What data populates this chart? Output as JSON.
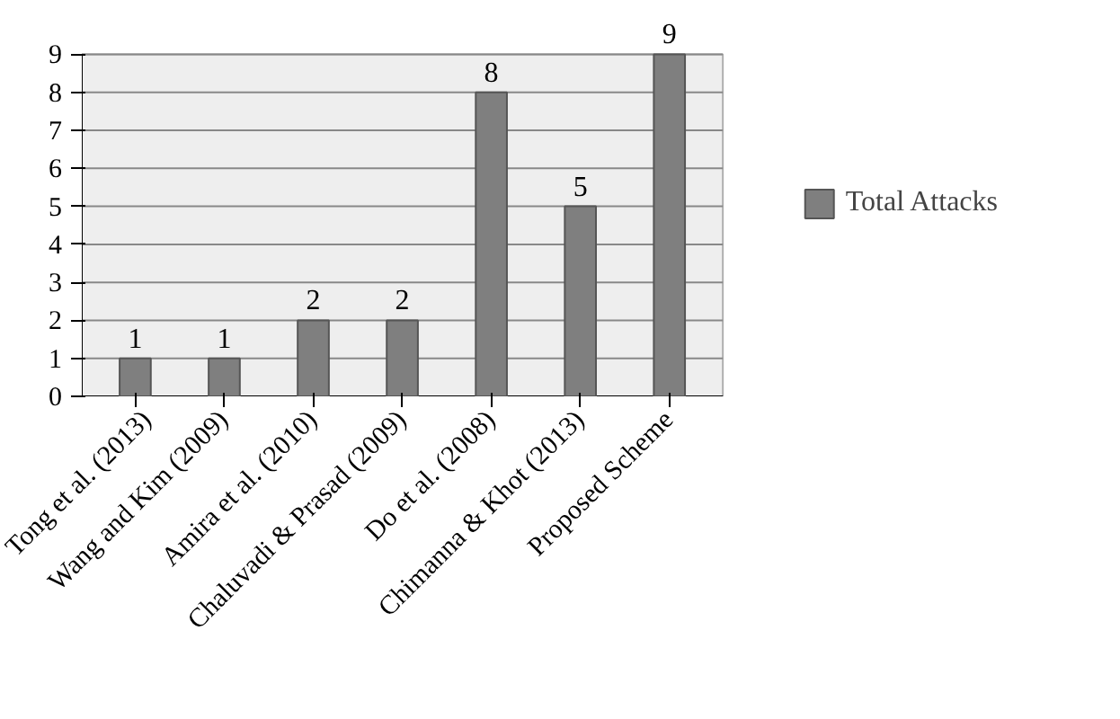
{
  "chart_data": {
    "type": "bar",
    "categories": [
      "Tong et al. (2013)",
      "Wang and Kim (2009)",
      "Amira et al. (2010)",
      "Chaluvadi & Prasad (2009)",
      "Do et al. (2008)",
      "Chimanna & Khot (2013)",
      "Proposed Scheme"
    ],
    "series": [
      {
        "name": "Total Attacks",
        "color": "#7f7f7f",
        "values": [
          1,
          1,
          2,
          2,
          8,
          5,
          9
        ]
      }
    ],
    "ylim": [
      0,
      9
    ],
    "yticks": [
      0,
      1,
      2,
      3,
      4,
      5,
      6,
      7,
      8,
      9
    ],
    "grid": "y",
    "legend": "right",
    "data_labels": true
  }
}
